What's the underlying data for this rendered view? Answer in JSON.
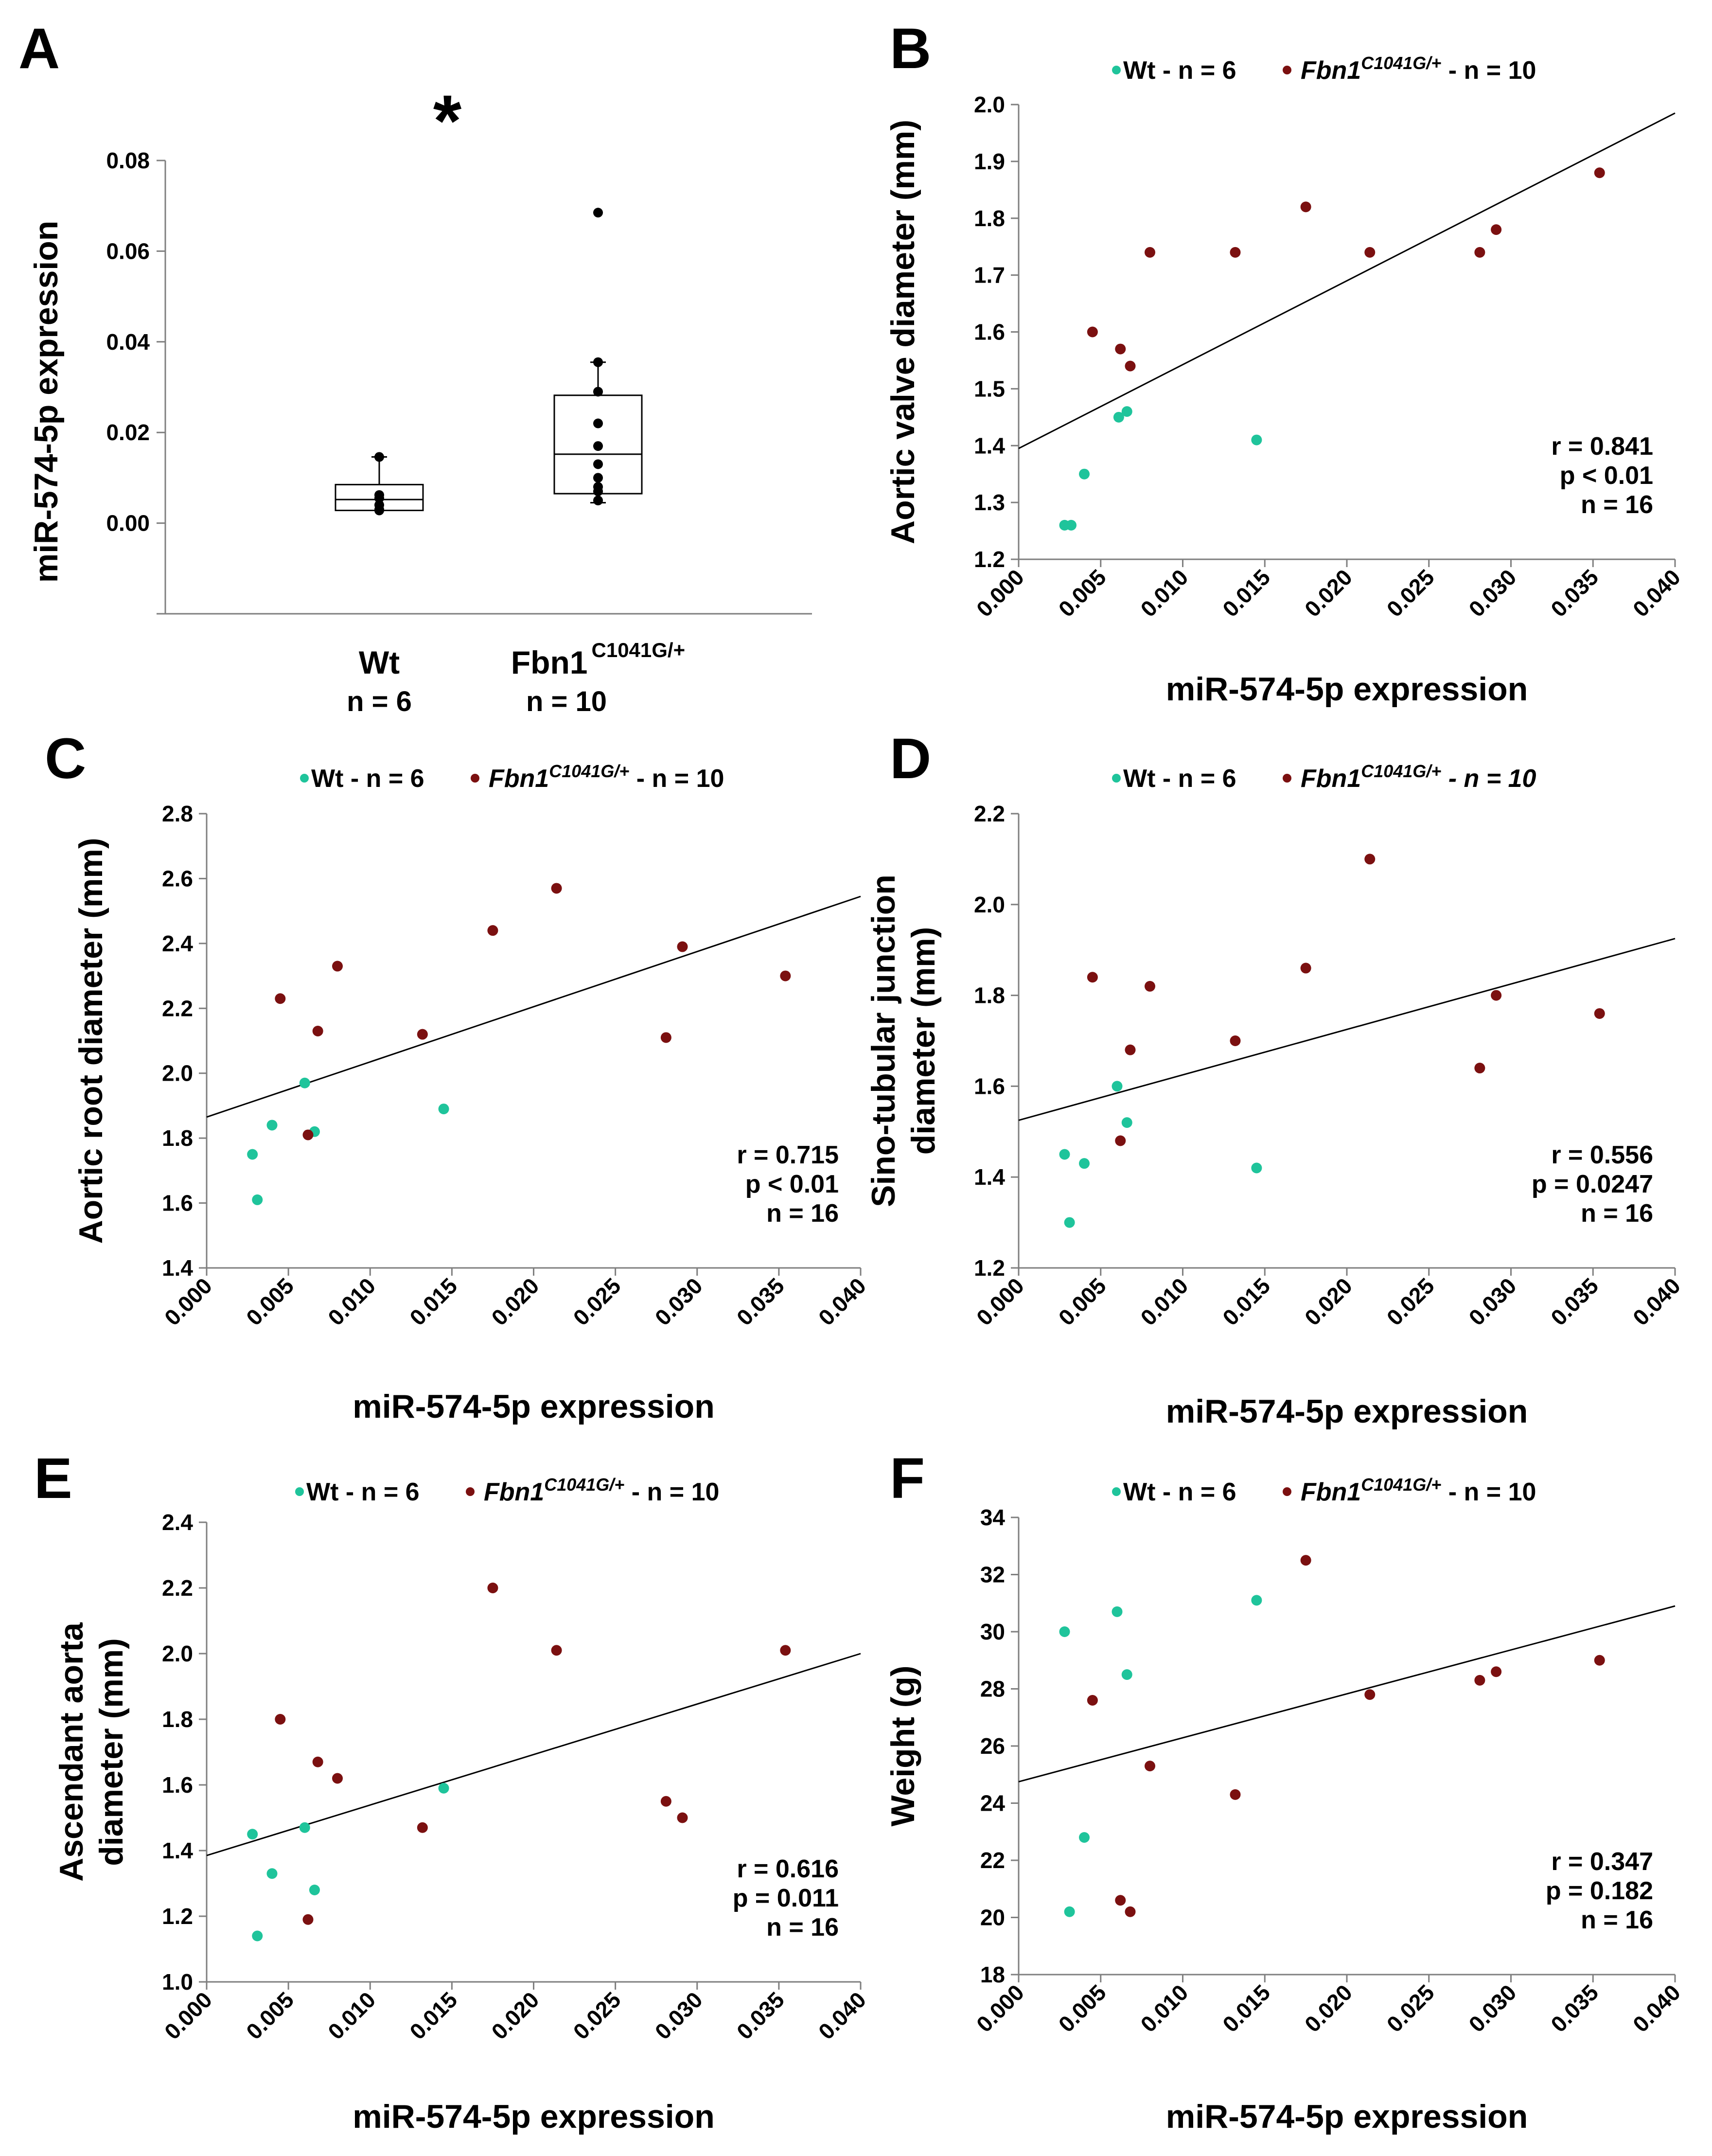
{
  "chart_data": [
    {
      "panel": "A",
      "type": "box",
      "ylabel": "miR-574-5p expression",
      "ylim": [
        -0.02,
        0.08
      ],
      "yticks": [
        "0.08",
        "0.06",
        "0.04",
        "0.02",
        "0.00"
      ],
      "ytick_values": [
        0.08,
        0.06,
        0.04,
        0.02,
        0.0
      ],
      "annotation": "*",
      "categories": [
        {
          "name": "Wt",
          "sup": "",
          "n_label": "n = 6",
          "box": {
            "q1": 0.0028,
            "median": 0.0052,
            "q3": 0.0085,
            "min": 0.0028,
            "max": 0.0146
          },
          "points": [
            0.0146,
            0.0062,
            0.0055,
            0.004,
            0.003,
            0.0028
          ]
        },
        {
          "name": "Fbn1",
          "sup": "C1041G/+",
          "n_label": "n = 10",
          "box": {
            "q1": 0.0065,
            "median": 0.0152,
            "q3": 0.0282,
            "min": 0.0045,
            "max": 0.0355
          },
          "points": [
            0.0685,
            0.0355,
            0.029,
            0.022,
            0.017,
            0.013,
            0.01,
            0.008,
            0.007,
            0.005
          ]
        }
      ]
    },
    {
      "panel": "B",
      "type": "scatter",
      "ylabel_lines": [
        "Aortic valve diameter (mm)"
      ],
      "xlabel": "miR-574-5p expression",
      "xlim": [
        0,
        0.04
      ],
      "ylim": [
        1.2,
        2.0
      ],
      "xticks": [
        "0.000",
        "0.005",
        "0.010",
        "0.015",
        "0.020",
        "0.025",
        "0.030",
        "0.035",
        "0.040"
      ],
      "yticks": [
        "1.2",
        "1.3",
        "1.4",
        "1.5",
        "1.6",
        "1.7",
        "1.8",
        "1.9",
        "2.0"
      ],
      "legend": {
        "wt_label": "Wt - n = 6",
        "fbn_label": "Fbn1",
        "fbn_sup": "C1041G/+",
        "fbn_n": " - n = 10",
        "fbn_n_italic": false
      },
      "stats": [
        "r = 0.841",
        "p < 0.01",
        "n = 16"
      ],
      "trend": [
        1.395,
        1.985
      ],
      "series": [
        {
          "name": "Wt",
          "color": "#1fc49b",
          "x": [
            0.0028,
            0.0032,
            0.004,
            0.0061,
            0.0066,
            0.0145
          ],
          "y": [
            1.26,
            1.26,
            1.35,
            1.45,
            1.46,
            1.41
          ]
        },
        {
          "name": "Fbn1 C1041G/+",
          "color": "#7b1010",
          "x": [
            0.0045,
            0.0062,
            0.0068,
            0.008,
            0.0132,
            0.0175,
            0.0214,
            0.0281,
            0.0291,
            0.0354
          ],
          "y": [
            1.6,
            1.57,
            1.54,
            1.74,
            1.74,
            1.82,
            1.74,
            1.74,
            1.78,
            1.88
          ]
        }
      ]
    },
    {
      "panel": "C",
      "type": "scatter",
      "ylabel_lines": [
        "Aortic root diameter (mm)"
      ],
      "xlabel": "miR-574-5p expression",
      "xlim": [
        0,
        0.04
      ],
      "ylim": [
        1.4,
        2.8
      ],
      "xticks": [
        "0.000",
        "0.005",
        "0.010",
        "0.015",
        "0.020",
        "0.025",
        "0.030",
        "0.035",
        "0.040"
      ],
      "yticks": [
        "1.4",
        "1.6",
        "1.8",
        "2.0",
        "2.2",
        "2.4",
        "2.6",
        "2.8"
      ],
      "legend": {
        "wt_label": "Wt - n = 6",
        "fbn_label": "Fbn1",
        "fbn_sup": "C1041G/+",
        "fbn_n": " - n = 10",
        "fbn_n_italic": false
      },
      "stats": [
        "r = 0.715",
        "p < 0.01",
        "n = 16"
      ],
      "trend": [
        1.865,
        2.545
      ],
      "series": [
        {
          "name": "Wt",
          "color": "#1fc49b",
          "x": [
            0.0028,
            0.0031,
            0.004,
            0.006,
            0.0066,
            0.0145
          ],
          "y": [
            1.75,
            1.61,
            1.84,
            1.97,
            1.82,
            1.89
          ]
        },
        {
          "name": "Fbn1 C1041G/+",
          "color": "#7b1010",
          "x": [
            0.0045,
            0.0062,
            0.0068,
            0.008,
            0.0132,
            0.0175,
            0.0214,
            0.0281,
            0.0291,
            0.0354
          ],
          "y": [
            2.23,
            1.81,
            2.13,
            2.33,
            2.12,
            2.44,
            2.57,
            2.11,
            2.39,
            2.3
          ]
        }
      ]
    },
    {
      "panel": "D",
      "type": "scatter",
      "ylabel_lines": [
        "Sino-tubular junction",
        "diameter (mm)"
      ],
      "xlabel": "miR-574-5p expression",
      "xlim": [
        0,
        0.04
      ],
      "ylim": [
        1.2,
        2.2
      ],
      "xticks": [
        "0.000",
        "0.005",
        "0.010",
        "0.015",
        "0.020",
        "0.025",
        "0.030",
        "0.035",
        "0.040"
      ],
      "yticks": [
        "1.2",
        "1.4",
        "1.6",
        "1.8",
        "2.0",
        "2.2"
      ],
      "legend": {
        "wt_label": "Wt - n = 6",
        "fbn_label": "Fbn1",
        "fbn_sup": "C1041G/+",
        "fbn_n": " - n = 10",
        "fbn_n_italic": true
      },
      "stats": [
        "r = 0.556",
        "p = 0.0247",
        "n = 16"
      ],
      "trend": [
        1.525,
        1.925
      ],
      "series": [
        {
          "name": "Wt",
          "color": "#1fc49b",
          "x": [
            0.0028,
            0.0031,
            0.004,
            0.006,
            0.0066,
            0.0145
          ],
          "y": [
            1.45,
            1.3,
            1.43,
            1.6,
            1.52,
            1.42
          ]
        },
        {
          "name": "Fbn1 C1041G/+",
          "color": "#7b1010",
          "x": [
            0.0045,
            0.0062,
            0.0068,
            0.008,
            0.0132,
            0.0175,
            0.0214,
            0.0281,
            0.0291,
            0.0354
          ],
          "y": [
            1.84,
            1.48,
            1.68,
            1.82,
            1.7,
            1.86,
            2.1,
            1.64,
            1.8,
            1.76
          ]
        }
      ]
    },
    {
      "panel": "E",
      "type": "scatter",
      "ylabel_lines": [
        "Ascendant aorta",
        "diameter (mm)"
      ],
      "xlabel": "miR-574-5p expression",
      "xlim": [
        0,
        0.04
      ],
      "ylim": [
        1.0,
        2.4
      ],
      "xticks": [
        "0.000",
        "0.005",
        "0.010",
        "0.015",
        "0.020",
        "0.025",
        "0.030",
        "0.035",
        "0.040"
      ],
      "yticks": [
        "1.0",
        "1.2",
        "1.4",
        "1.6",
        "1.8",
        "2.0",
        "2.2",
        "2.4"
      ],
      "legend": {
        "wt_label": "Wt - n = 6",
        "fbn_label": "Fbn1",
        "fbn_sup": "C1041G/+",
        "fbn_n": " - n = 10",
        "fbn_n_italic": false
      },
      "stats": [
        "r = 0.616",
        "p = 0.011",
        "n = 16"
      ],
      "trend": [
        1.385,
        2.0
      ],
      "series": [
        {
          "name": "Wt",
          "color": "#1fc49b",
          "x": [
            0.0028,
            0.0031,
            0.004,
            0.006,
            0.0066,
            0.0145
          ],
          "y": [
            1.45,
            1.14,
            1.33,
            1.47,
            1.28,
            1.59
          ]
        },
        {
          "name": "Fbn1 C1041G/+",
          "color": "#7b1010",
          "x": [
            0.0045,
            0.0062,
            0.0068,
            0.008,
            0.0132,
            0.0175,
            0.0214,
            0.0281,
            0.0291,
            0.0354
          ],
          "y": [
            1.8,
            1.19,
            1.67,
            1.62,
            1.47,
            2.2,
            2.01,
            1.55,
            1.5,
            2.01
          ]
        }
      ]
    },
    {
      "panel": "F",
      "type": "scatter",
      "ylabel_lines": [
        "Weight (g)"
      ],
      "xlabel": "miR-574-5p expression",
      "xlim": [
        0,
        0.04
      ],
      "ylim": [
        18,
        34
      ],
      "xticks": [
        "0.000",
        "0.005",
        "0.010",
        "0.015",
        "0.020",
        "0.025",
        "0.030",
        "0.035",
        "0.040"
      ],
      "yticks": [
        "18",
        "20",
        "22",
        "24",
        "26",
        "28",
        "30",
        "32",
        "34"
      ],
      "legend": {
        "wt_label": "Wt - n = 6",
        "fbn_label": "Fbn1",
        "fbn_sup": "C1041G/+",
        "fbn_n": " - n = 10",
        "fbn_n_italic": false
      },
      "stats": [
        "r = 0.347",
        "p = 0.182",
        "n = 16"
      ],
      "trend": [
        24.75,
        30.9
      ],
      "series": [
        {
          "name": "Wt",
          "color": "#1fc49b",
          "x": [
            0.0028,
            0.0031,
            0.004,
            0.006,
            0.0066,
            0.0145
          ],
          "y": [
            30.0,
            20.2,
            22.8,
            30.7,
            28.5,
            31.1
          ]
        },
        {
          "name": "Fbn1 C1041G/+",
          "color": "#7b1010",
          "x": [
            0.0045,
            0.0062,
            0.0068,
            0.008,
            0.0132,
            0.0175,
            0.0214,
            0.0281,
            0.0291,
            0.0354
          ],
          "y": [
            27.6,
            20.6,
            20.2,
            25.3,
            24.3,
            32.5,
            27.8,
            28.3,
            28.6,
            29.0
          ]
        }
      ]
    }
  ]
}
